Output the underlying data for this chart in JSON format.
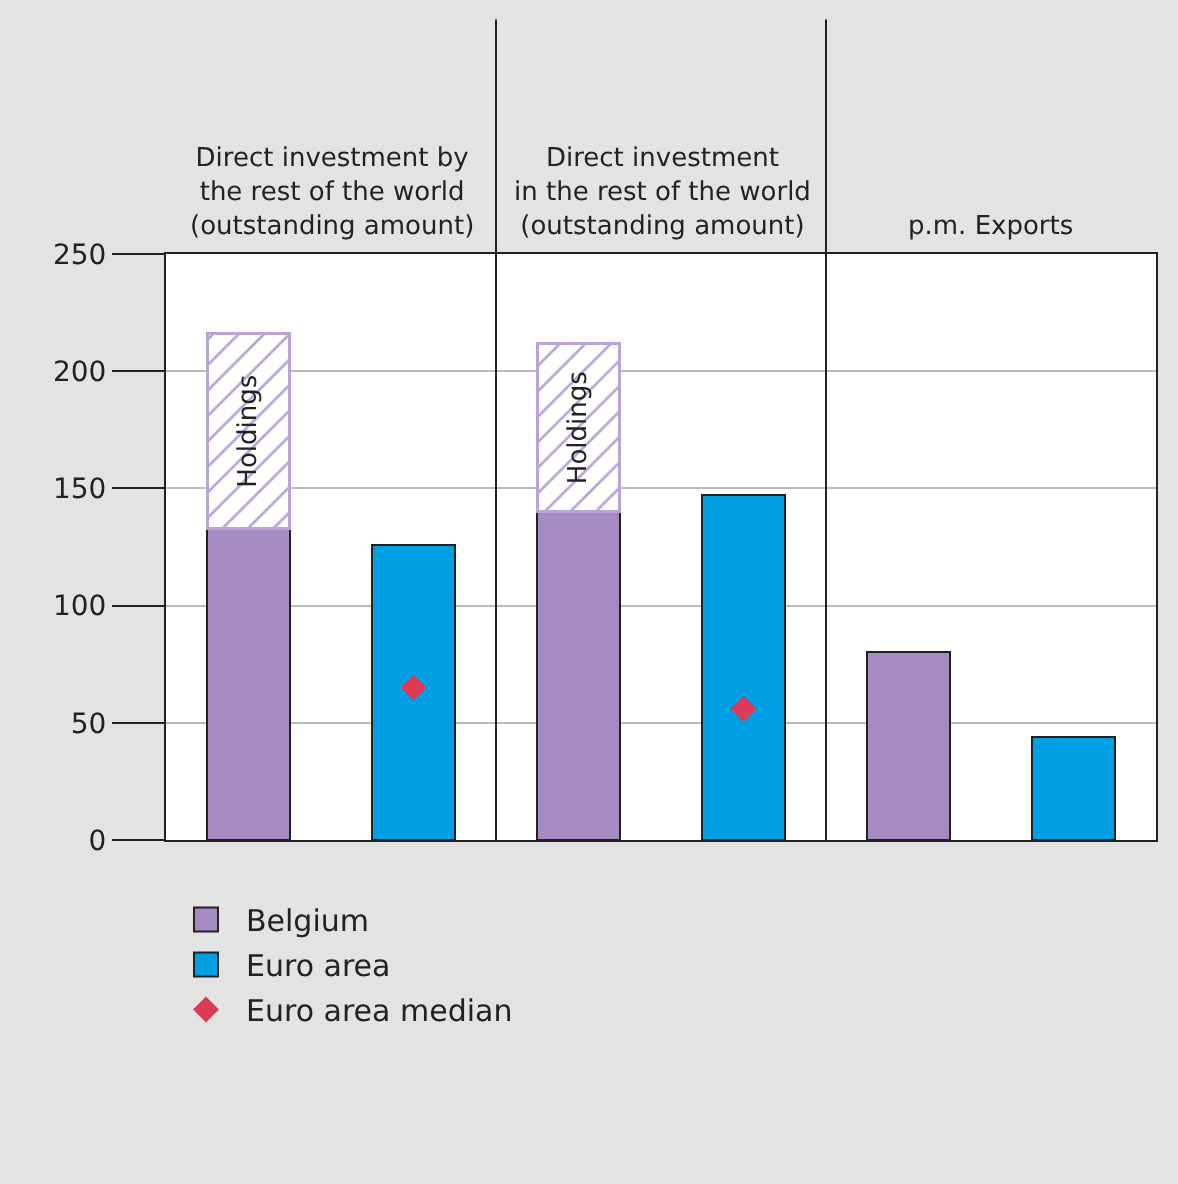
{
  "chart_data": {
    "type": "bar",
    "categories": [
      null,
      null,
      null,
      null,
      null,
      null
    ],
    "annotations": [
      "Direct investment by\nthe rest of the world\n(outstanding amount)",
      "Direct investment\nin the rest of the world\n(outstanding amount)",
      "p.m. Exports"
    ],
    "series": [
      {
        "name": "Belgium",
        "color": "#a68ac2",
        "values": [
          133,
          null,
          140,
          null,
          80,
          null
        ]
      },
      {
        "name": "Holdings",
        "color": "#b9a4d6",
        "values": [
          83,
          null,
          72,
          null,
          null,
          null
        ]
      },
      {
        "name": "Euro area",
        "color": "#009fe3",
        "values": [
          null,
          126,
          null,
          147,
          null,
          44
        ]
      },
      {
        "name": "Euro area median",
        "type": "scatter",
        "color": "#dc3a55",
        "values": [
          null,
          65,
          null,
          56,
          null,
          null
        ]
      }
    ],
    "stacked": true,
    "marker": "diamond",
    "ylim": [
      0,
      250
    ],
    "yticks": [
      0,
      50,
      100,
      150,
      200,
      250
    ],
    "grid": "y",
    "legend": "bottom"
  }
}
